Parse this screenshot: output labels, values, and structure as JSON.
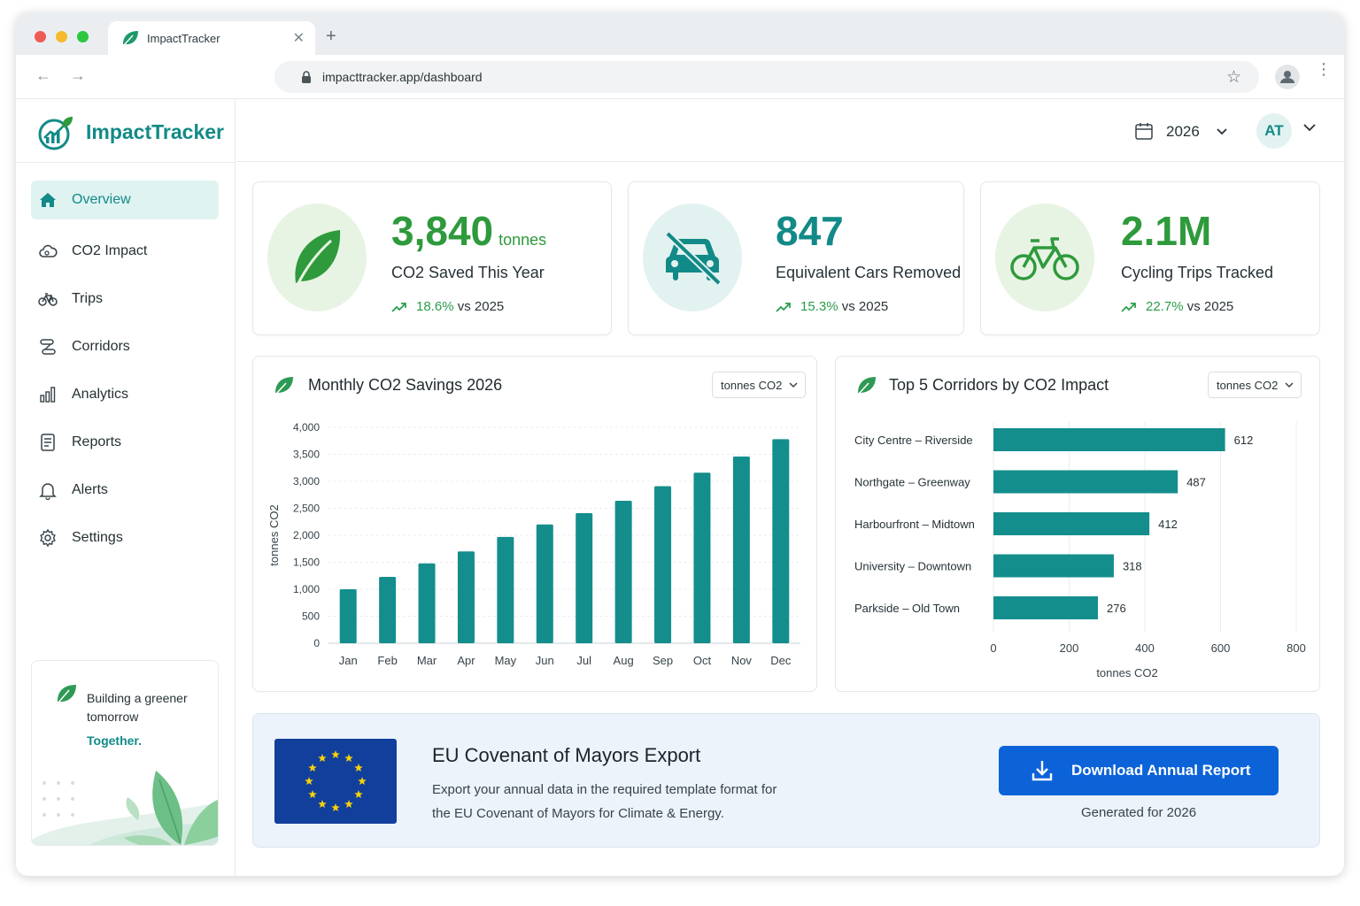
{
  "browser": {
    "tab_title": "ImpactTracker",
    "url": "impacttracker.app/dashboard"
  },
  "brand": {
    "name": "ImpactTracker",
    "accent": "#128a87"
  },
  "sidebar": {
    "items": [
      {
        "label": "Overview",
        "icon": "home-icon"
      },
      {
        "label": "CO2 Impact",
        "icon": "cloud-icon"
      },
      {
        "label": "Trips",
        "icon": "bicycle-icon"
      },
      {
        "label": "Corridors",
        "icon": "route-icon"
      },
      {
        "label": "Analytics",
        "icon": "bar-chart-icon"
      },
      {
        "label": "Reports",
        "icon": "document-icon"
      },
      {
        "label": "Alerts",
        "icon": "bell-icon"
      },
      {
        "label": "Settings",
        "icon": "gear-icon"
      }
    ],
    "promo": {
      "line1": "Building a greener tomorrow",
      "line2": "Together."
    }
  },
  "topbar": {
    "year": "2026",
    "user_initials": "AT"
  },
  "stats": [
    {
      "value": "3,840",
      "unit": "tonnes",
      "label": "CO2 Saved This Year",
      "change": "18.6%",
      "compare": "vs 2025",
      "icon": "leaf-icon",
      "color": "#2e9a3c"
    },
    {
      "value": "847",
      "unit": "",
      "label": "Equivalent Cars Removed",
      "change": "15.3%",
      "compare": "vs 2025",
      "icon": "car-crossed-icon",
      "color": "#128a87"
    },
    {
      "value": "2.1M",
      "unit": "",
      "label": "Cycling Trips Tracked",
      "change": "22.7%",
      "compare": "vs 2025",
      "icon": "bicycle-icon",
      "color": "#2e9a3c"
    }
  ],
  "monthly_panel": {
    "title": "Monthly CO2 Savings 2026",
    "unit_select": "tonnes CO2"
  },
  "corridor_panel": {
    "title": "Top 5 Corridors by CO2 Impact",
    "unit_select": "tonnes CO2"
  },
  "chart_data": [
    {
      "type": "bar",
      "title": "Monthly CO2 Savings 2026",
      "categories": [
        "Jan",
        "Feb",
        "Mar",
        "Apr",
        "May",
        "Jun",
        "Jul",
        "Aug",
        "Sep",
        "Oct",
        "Nov",
        "Dec"
      ],
      "values": [
        1000,
        1230,
        1480,
        1700,
        1970,
        2200,
        2410,
        2640,
        2910,
        3160,
        3460,
        3780
      ],
      "xlabel": "",
      "ylabel": "tonnes CO2",
      "ylim": [
        0,
        4000
      ],
      "yticks": [
        "0",
        "500",
        "1,000",
        "1,500",
        "2,000",
        "2,500",
        "3,000",
        "3,500",
        "4,000"
      ],
      "grid": true,
      "color": "#138e8c"
    },
    {
      "type": "bar",
      "orientation": "horizontal",
      "title": "Top 5 Corridors by CO2 Impact",
      "categories": [
        "City Centre – Riverside",
        "Northgate – Greenway",
        "Harbourfront – Midtown",
        "University – Downtown",
        "Parkside – Old Town"
      ],
      "values": [
        612,
        487,
        412,
        318,
        276
      ],
      "xlabel": "tonnes CO2",
      "ylabel": "",
      "xlim": [
        0,
        800
      ],
      "xticks": [
        "0",
        "200",
        "400",
        "600",
        "800"
      ],
      "grid": true,
      "color": "#138e8c"
    }
  ],
  "export": {
    "title": "EU Covenant of Mayors Export",
    "description": "Export your annual data in the required template format for the EU Covenant of Mayors for Climate & Energy.",
    "button": "Download Annual Report",
    "generated": "Generated for 2026",
    "button_color": "#0c63d8"
  }
}
